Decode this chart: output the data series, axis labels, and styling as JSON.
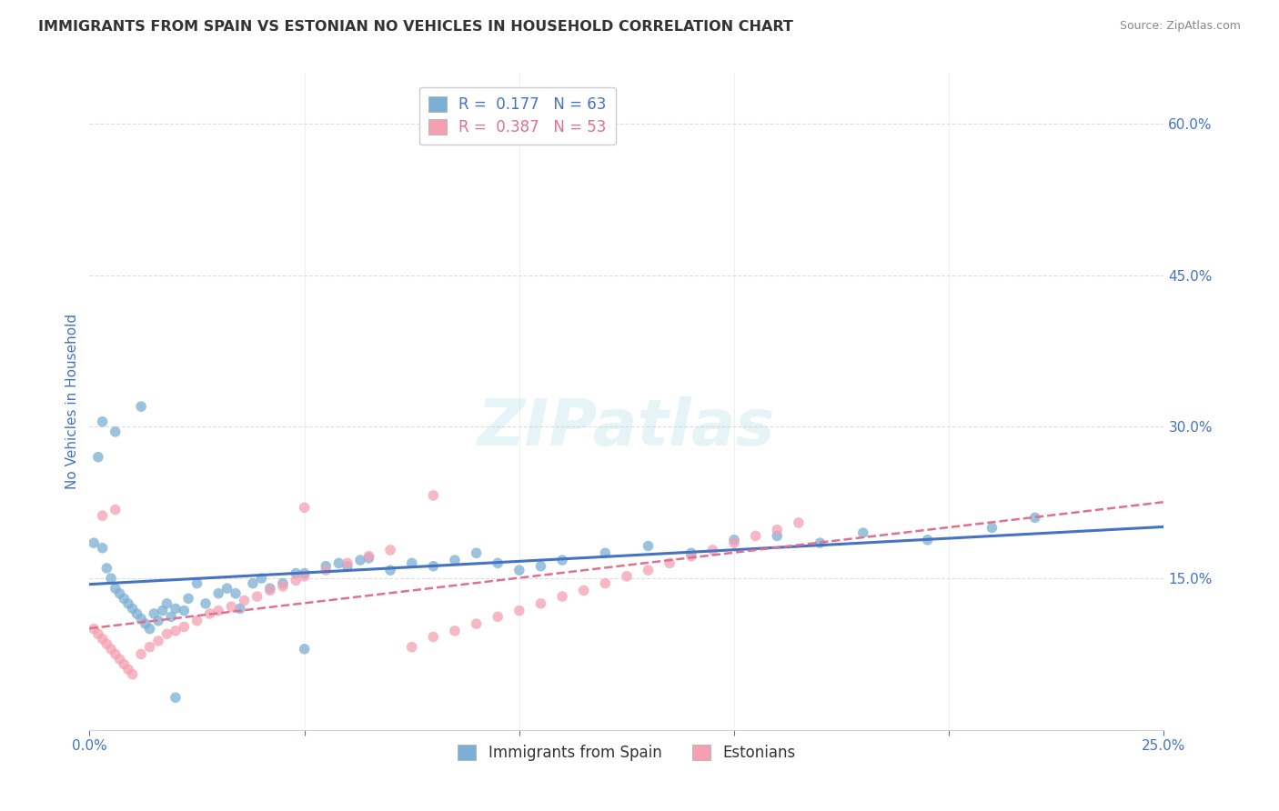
{
  "title": "IMMIGRANTS FROM SPAIN VS ESTONIAN NO VEHICLES IN HOUSEHOLD CORRELATION CHART",
  "source": "Source: ZipAtlas.com",
  "ylabel": "No Vehicles in Household",
  "xlim": [
    0.0,
    0.25
  ],
  "ylim": [
    0.0,
    0.65
  ],
  "legend_r1": "R =  0.177   N = 63",
  "legend_r2": "R =  0.387   N = 53",
  "color_spain": "#7BAFD4",
  "color_estonia": "#F4A0B0",
  "color_spain_line": "#4472C4",
  "color_estonia_line": "#E07090",
  "color_tick": "#4472C4",
  "watermark": "ZIPatlas",
  "spain_x": [
    0.001,
    0.002,
    0.003,
    0.004,
    0.005,
    0.006,
    0.007,
    0.008,
    0.009,
    0.01,
    0.011,
    0.012,
    0.013,
    0.014,
    0.015,
    0.016,
    0.017,
    0.018,
    0.019,
    0.02,
    0.022,
    0.023,
    0.025,
    0.027,
    0.03,
    0.032,
    0.034,
    0.038,
    0.04,
    0.042,
    0.045,
    0.048,
    0.05,
    0.055,
    0.058,
    0.06,
    0.063,
    0.065,
    0.07,
    0.075,
    0.08,
    0.085,
    0.09,
    0.095,
    0.1,
    0.105,
    0.11,
    0.12,
    0.13,
    0.14,
    0.15,
    0.16,
    0.17,
    0.18,
    0.195,
    0.21,
    0.22,
    0.003,
    0.006,
    0.012,
    0.02,
    0.035,
    0.05
  ],
  "spain_y": [
    0.185,
    0.27,
    0.18,
    0.16,
    0.15,
    0.14,
    0.135,
    0.13,
    0.125,
    0.12,
    0.115,
    0.11,
    0.105,
    0.1,
    0.115,
    0.108,
    0.118,
    0.125,
    0.112,
    0.12,
    0.118,
    0.13,
    0.145,
    0.125,
    0.135,
    0.14,
    0.135,
    0.145,
    0.15,
    0.14,
    0.145,
    0.155,
    0.155,
    0.162,
    0.165,
    0.162,
    0.168,
    0.17,
    0.158,
    0.165,
    0.162,
    0.168,
    0.175,
    0.165,
    0.158,
    0.162,
    0.168,
    0.175,
    0.182,
    0.175,
    0.188,
    0.192,
    0.185,
    0.195,
    0.188,
    0.2,
    0.21,
    0.305,
    0.295,
    0.32,
    0.032,
    0.12,
    0.08
  ],
  "estonia_x": [
    0.001,
    0.002,
    0.003,
    0.004,
    0.005,
    0.006,
    0.007,
    0.008,
    0.009,
    0.01,
    0.012,
    0.014,
    0.016,
    0.018,
    0.02,
    0.022,
    0.025,
    0.028,
    0.03,
    0.033,
    0.036,
    0.039,
    0.042,
    0.045,
    0.048,
    0.05,
    0.055,
    0.06,
    0.065,
    0.07,
    0.075,
    0.08,
    0.085,
    0.09,
    0.095,
    0.1,
    0.105,
    0.11,
    0.115,
    0.12,
    0.125,
    0.13,
    0.135,
    0.14,
    0.145,
    0.15,
    0.155,
    0.16,
    0.165,
    0.003,
    0.006,
    0.05,
    0.08
  ],
  "estonia_y": [
    0.1,
    0.095,
    0.09,
    0.085,
    0.08,
    0.075,
    0.07,
    0.065,
    0.06,
    0.055,
    0.075,
    0.082,
    0.088,
    0.095,
    0.098,
    0.102,
    0.108,
    0.115,
    0.118,
    0.122,
    0.128,
    0.132,
    0.138,
    0.142,
    0.148,
    0.152,
    0.158,
    0.165,
    0.172,
    0.178,
    0.082,
    0.092,
    0.098,
    0.105,
    0.112,
    0.118,
    0.125,
    0.132,
    0.138,
    0.145,
    0.152,
    0.158,
    0.165,
    0.172,
    0.178,
    0.185,
    0.192,
    0.198,
    0.205,
    0.212,
    0.218,
    0.22,
    0.232
  ]
}
